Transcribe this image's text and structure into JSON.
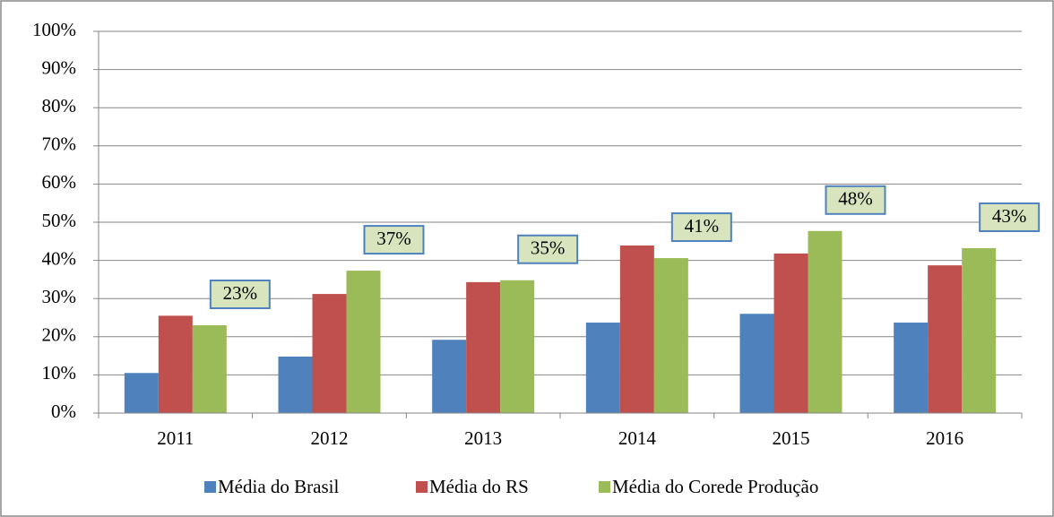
{
  "chart_data": {
    "type": "bar",
    "categories": [
      "2011",
      "2012",
      "2013",
      "2014",
      "2015",
      "2016"
    ],
    "series": [
      {
        "name": "Média do Brasil",
        "color": "#4f81bd",
        "values": [
          10.5,
          14.8,
          19.2,
          23.7,
          26,
          23.7
        ]
      },
      {
        "name": "Média do RS",
        "color": "#c0504d",
        "values": [
          25.5,
          31.2,
          34.3,
          43.9,
          41.8,
          38.7
        ]
      },
      {
        "name": "Média do Corede Produção",
        "color": "#9bbb59",
        "values": [
          23,
          37.3,
          34.8,
          40.6,
          47.7,
          43.2
        ],
        "value_labels": [
          "23%",
          "37%",
          "35%",
          "41%",
          "48%",
          "43%"
        ]
      }
    ],
    "ylim": [
      0,
      100
    ],
    "yticks": [
      {
        "value": 0,
        "label": "0%"
      },
      {
        "value": 10,
        "label": "10%"
      },
      {
        "value": 20,
        "label": "20%"
      },
      {
        "value": 30,
        "label": "30%"
      },
      {
        "value": 40,
        "label": "40%"
      },
      {
        "value": 50,
        "label": "50%"
      },
      {
        "value": 60,
        "label": "60%"
      },
      {
        "value": 70,
        "label": "70%"
      },
      {
        "value": 80,
        "label": "80%"
      },
      {
        "value": 90,
        "label": "90%"
      },
      {
        "value": 100,
        "label": "100%"
      }
    ],
    "grid": true,
    "legend": "bottom"
  }
}
